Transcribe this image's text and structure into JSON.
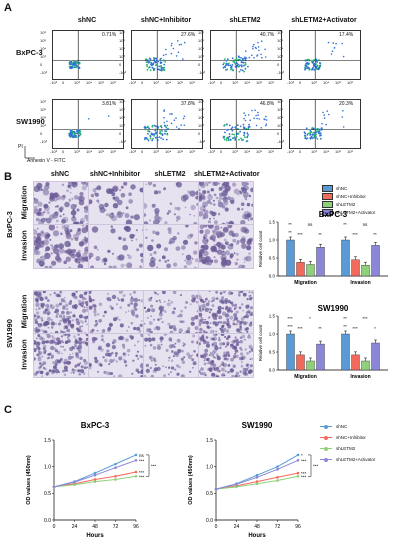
{
  "panels": {
    "A": "A",
    "B": "B",
    "C": "C"
  },
  "colors": {
    "shNC": "#5b9bd5",
    "inhibitor": "#f26a5b",
    "shLETM2": "#8fd07b",
    "activator": "#8c86d8",
    "stainDark": "#6a5a96",
    "stainLight": "#e7e2ef",
    "flowBlue": "#2f6fd6",
    "flowGreen": "#22b36b"
  },
  "flow": {
    "columns": [
      "shNC",
      "shNC+Inhibitor",
      "shLETM2",
      "shLETM2+Activator"
    ],
    "rows": [
      {
        "label": "BxPC-3",
        "values": [
          "0.71%",
          "27.6%",
          "40.7%",
          "17.4%"
        ]
      },
      {
        "label": "SW1990",
        "values": [
          "3.81%",
          "37.8%",
          "46.8%",
          "20.3%"
        ]
      }
    ],
    "xlabel": "Annexin V - FITC",
    "ylabel": "PI",
    "yticks": [
      "10⁶",
      "10⁵",
      "10⁴",
      "10³",
      "0",
      "-10³"
    ],
    "xticks": [
      "-10³",
      "0",
      "10³",
      "10⁴",
      "10⁵",
      "10⁶"
    ]
  },
  "transwell": {
    "columns": [
      "shNC",
      "shNC+Inhibitor",
      "shLETM2",
      "shLETM2+Activator"
    ],
    "cells": [
      "BxPC-3",
      "SW1990"
    ],
    "rows": [
      "Migration",
      "Invasion"
    ],
    "legend": [
      "shNC",
      "shNC+Inhibitor",
      "shLETM2",
      "shLETM2+Activator"
    ]
  },
  "chart_data": [
    {
      "type": "bar",
      "title": "BxPC-3",
      "categories": [
        "Migration",
        "Invasion"
      ],
      "ylabel": "Relative cell count",
      "ylim": [
        0,
        1.5
      ],
      "yticks": [
        "0.0",
        "0.5",
        "1.0",
        "1.5"
      ],
      "series": [
        {
          "name": "shNC",
          "values": [
            1.0,
            1.0
          ]
        },
        {
          "name": "shNC+Inhibitor",
          "values": [
            0.38,
            0.45
          ]
        },
        {
          "name": "shLETM2",
          "values": [
            0.32,
            0.3
          ]
        },
        {
          "name": "shLETM2+Activator",
          "values": [
            0.8,
            0.85
          ]
        }
      ],
      "annotations": [
        "**",
        "***",
        "ns",
        "**",
        "**",
        "**",
        "***",
        "ns",
        "**"
      ]
    },
    {
      "type": "bar",
      "title": "SW1990",
      "categories": [
        "Migration",
        "Invasion"
      ],
      "ylabel": "Relative cell count",
      "ylim": [
        0,
        1.5
      ],
      "yticks": [
        "0.0",
        "0.5",
        "1.0",
        "1.5"
      ],
      "series": [
        {
          "name": "shNC",
          "values": [
            1.0,
            1.0
          ]
        },
        {
          "name": "shNC+Inhibitor",
          "values": [
            0.42,
            0.42
          ]
        },
        {
          "name": "shLETM2",
          "values": [
            0.25,
            0.25
          ]
        },
        {
          "name": "shLETM2+Activator",
          "values": [
            0.72,
            0.75
          ]
        }
      ],
      "annotations": [
        "***",
        "***",
        "*",
        "**",
        "***",
        "**",
        "***",
        "***",
        "*",
        "**"
      ]
    },
    {
      "type": "line",
      "title": "BxPC-3",
      "xlabel": "Hours",
      "ylabel": "OD values (450nm)",
      "x": [
        0,
        24,
        48,
        72,
        96
      ],
      "xlim": [
        0,
        96
      ],
      "ylim": [
        0.0,
        1.5
      ],
      "yticks": [
        "0.0",
        "0.5",
        "1.0",
        "1.5"
      ],
      "series": [
        {
          "name": "shNC",
          "values": [
            0.62,
            0.72,
            0.88,
            1.05,
            1.22
          ]
        },
        {
          "name": "shNC+Inhibitor",
          "values": [
            0.62,
            0.68,
            0.76,
            0.82,
            0.9
          ]
        },
        {
          "name": "shLETM2",
          "values": [
            0.62,
            0.66,
            0.72,
            0.76,
            0.82
          ]
        },
        {
          "name": "shLETM2+Activator",
          "values": [
            0.62,
            0.71,
            0.84,
            0.98,
            1.12
          ]
        }
      ],
      "annotations": [
        "ns",
        "***",
        "***",
        "***"
      ]
    },
    {
      "type": "line",
      "title": "SW1990",
      "xlabel": "Hours",
      "ylabel": "OD values (450nm)",
      "x": [
        0,
        24,
        48,
        72,
        96
      ],
      "xlim": [
        0,
        96
      ],
      "ylim": [
        0.0,
        1.5
      ],
      "yticks": [
        "0.0",
        "0.5",
        "1.0",
        "1.5"
      ],
      "series": [
        {
          "name": "shNC",
          "values": [
            0.58,
            0.68,
            0.84,
            1.0,
            1.22
          ]
        },
        {
          "name": "shNC+Inhibitor",
          "values": [
            0.58,
            0.64,
            0.72,
            0.8,
            0.88
          ]
        },
        {
          "name": "shLETM2",
          "values": [
            0.58,
            0.62,
            0.68,
            0.74,
            0.82
          ]
        },
        {
          "name": "shLETM2+Activator",
          "values": [
            0.58,
            0.67,
            0.8,
            0.95,
            1.12
          ]
        }
      ],
      "annotations": [
        "*",
        "***",
        "***",
        "***"
      ]
    }
  ],
  "lineLegend": [
    "shNC",
    "shNC+Inhibitor",
    "shLETM2",
    "shLETM2+Activator"
  ]
}
